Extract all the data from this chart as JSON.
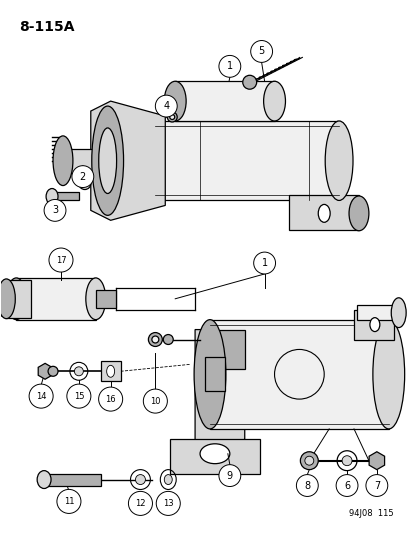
{
  "title": "8-115A",
  "watermark": "94J08  115",
  "background": "#ffffff",
  "figsize": [
    4.14,
    5.33
  ],
  "dpi": 100,
  "line_color": "#000000",
  "fill_light": "#f0f0f0",
  "fill_mid": "#d8d8d8",
  "fill_dark": "#b0b0b0",
  "lw": 0.9
}
